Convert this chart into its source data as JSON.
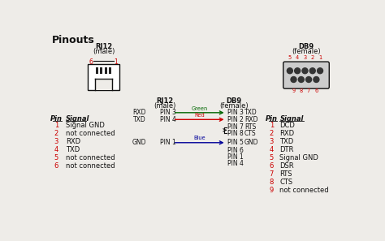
{
  "title": "Pinouts",
  "bg_color": "#eeece8",
  "rj12_label": "RJ12",
  "rj12_sub": "(male)",
  "db9_label": "DB9",
  "db9_sub": "(female)",
  "rj12_pin_numbers": [
    "6",
    "1"
  ],
  "db9_pin_top": [
    "5",
    "4",
    "3",
    "2",
    "1"
  ],
  "db9_pin_bot": [
    "9",
    "8",
    "7",
    "6"
  ],
  "rj12_pins_table": {
    "header_pin": "Pin",
    "header_signal": "Signal",
    "rows": [
      {
        "pin": "1",
        "signal": "Signal GND"
      },
      {
        "pin": "2",
        "signal": "not connected"
      },
      {
        "pin": "3",
        "signal": "RXD"
      },
      {
        "pin": "4",
        "signal": "TXD"
      },
      {
        "pin": "5",
        "signal": "not connected"
      },
      {
        "pin": "6",
        "signal": "not connected"
      }
    ]
  },
  "db9_pins_table": {
    "header_pin": "Pin",
    "header_signal": "Signal",
    "rows": [
      {
        "pin": "1",
        "signal": "DCD"
      },
      {
        "pin": "2",
        "signal": "RXD"
      },
      {
        "pin": "3",
        "signal": "TXD"
      },
      {
        "pin": "4",
        "signal": "DTR"
      },
      {
        "pin": "5",
        "signal": "Signal GND"
      },
      {
        "pin": "6",
        "signal": "DSR"
      },
      {
        "pin": "7",
        "signal": "RTS"
      },
      {
        "pin": "8",
        "signal": "CTS"
      },
      {
        "pin": "9",
        "signal": "not connected"
      }
    ]
  },
  "red_color": "#cc0000",
  "black_color": "#111111",
  "green_color": "#006600",
  "blue_color": "#000099"
}
